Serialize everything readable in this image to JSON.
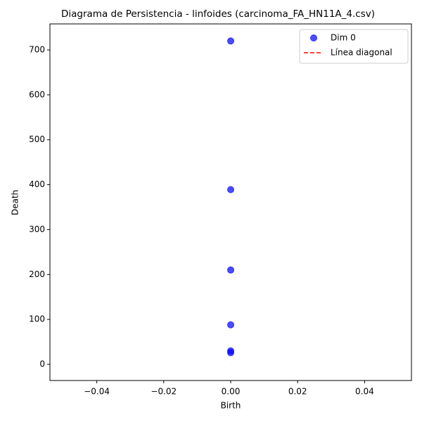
{
  "chart_data": {
    "type": "scatter",
    "title": "Diagrama de Persistencia - linfoides (carcinoma_FA_HN11A_4.csv)",
    "x_label": "Birth",
    "y_label": "Death",
    "series": [
      {
        "name": "Dim 0",
        "type": "scatter",
        "color": "#0000ff",
        "x": [
          0,
          0,
          0,
          0,
          0,
          0
        ],
        "values": [
          720,
          389,
          210,
          88,
          30,
          26
        ]
      },
      {
        "name": "Línea diagonal",
        "type": "line",
        "color": "#ff0000",
        "x": [
          0,
          0
        ],
        "values": [
          0,
          0
        ]
      }
    ],
    "xlim": [
      -0.054,
      0.054
    ],
    "xticks": [
      {
        "value": -0.04,
        "label": "−0.04"
      },
      {
        "value": -0.02,
        "label": "−0.02"
      },
      {
        "value": 0,
        "label": "0.00"
      },
      0.02,
      0.04
    ],
    "ylim": [
      -36,
      758
    ],
    "yticks": [
      0,
      100,
      200,
      300,
      400,
      500,
      600,
      700
    ],
    "grid": false,
    "legend": "upper right"
  }
}
